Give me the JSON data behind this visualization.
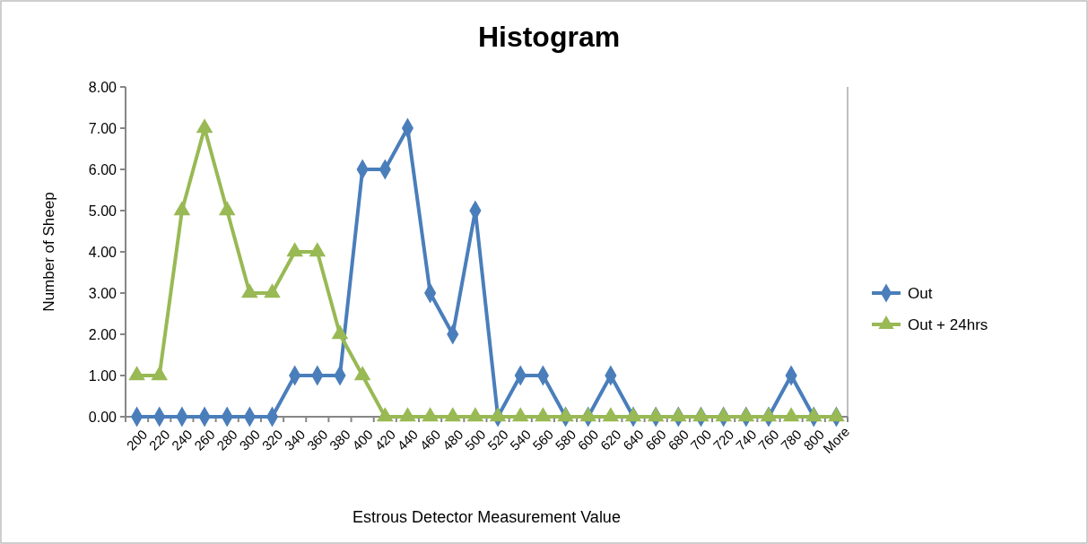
{
  "chart_data": {
    "type": "line",
    "title": "Histogram",
    "xlabel": "Estrous Detector Measurement Value",
    "ylabel": "Number of Sheep",
    "categories": [
      "200",
      "220",
      "240",
      "260",
      "280",
      "300",
      "320",
      "340",
      "360",
      "380",
      "400",
      "420",
      "440",
      "460",
      "480",
      "500",
      "520",
      "540",
      "560",
      "580",
      "600",
      "620",
      "640",
      "660",
      "680",
      "700",
      "720",
      "740",
      "760",
      "780",
      "800",
      "More"
    ],
    "series": [
      {
        "name": "Out",
        "color": "#4a7ebb",
        "marker": "diamond",
        "values": [
          0,
          0,
          0,
          0,
          0,
          0,
          0,
          1,
          1,
          1,
          6,
          6,
          7,
          3,
          2,
          5,
          0,
          1,
          1,
          0,
          0,
          1,
          0,
          0,
          0,
          0,
          0,
          0,
          0,
          1,
          0,
          0
        ]
      },
      {
        "name": "Out + 24hrs",
        "color": "#98b954",
        "marker": "triangle",
        "values": [
          1,
          1,
          5,
          7,
          5,
          3,
          3,
          4,
          4,
          2,
          1,
          0,
          0,
          0,
          0,
          0,
          0,
          0,
          0,
          0,
          0,
          0,
          0,
          0,
          0,
          0,
          0,
          0,
          0,
          0,
          0,
          0
        ]
      }
    ],
    "ylim": [
      0,
      8
    ],
    "yticks": [
      {
        "value": 0,
        "label": "0.00"
      },
      {
        "value": 1,
        "label": "1.00"
      },
      {
        "value": 2,
        "label": "2.00"
      },
      {
        "value": 3,
        "label": "3.00"
      },
      {
        "value": 4,
        "label": "4.00"
      },
      {
        "value": 5,
        "label": "5.00"
      },
      {
        "value": 6,
        "label": "6.00"
      },
      {
        "value": 7,
        "label": "7.00"
      },
      {
        "value": 8,
        "label": "8.00"
      }
    ],
    "grid": false,
    "legend": "right"
  }
}
